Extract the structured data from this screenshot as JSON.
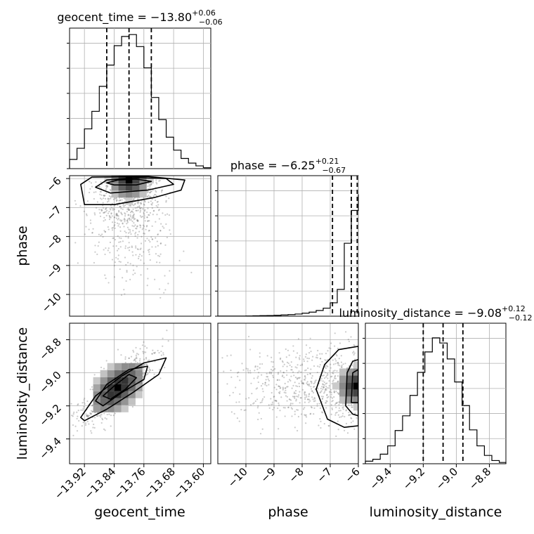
{
  "figure": {
    "type": "corner",
    "parameters": [
      "geocent_time",
      "phase",
      "luminosity_distance"
    ]
  },
  "colors": {
    "line": "#000000",
    "grid": "#b0b0b0",
    "density_dark": "#000000",
    "density_light": "#d9d9d9",
    "scatter": "#6b6b6b",
    "background": "#ffffff"
  },
  "chart_data": [
    {
      "type": "histogram",
      "panel": "diag-geocent_time",
      "title_param": "geocent_time",
      "title_median": "−13.80",
      "title_plus": "+0.06",
      "title_minus": "−0.06",
      "median": -13.8,
      "quantiles": [
        -13.86,
        -13.8,
        -13.74
      ],
      "xlim": [
        -13.96,
        -13.58
      ],
      "xticks": [
        -13.92,
        -13.84,
        -13.76,
        -13.68,
        -13.6
      ],
      "xtick_labels": [
        "−13.92",
        "−13.84",
        "−13.76",
        "−13.68",
        "−13.60"
      ],
      "xlabel": "geocent_time",
      "bin_edges": [
        -13.96,
        -13.94,
        -13.92,
        -13.9,
        -13.88,
        -13.86,
        -13.84,
        -13.82,
        -13.8,
        -13.78,
        -13.76,
        -13.74,
        -13.72,
        -13.7,
        -13.68,
        -13.66,
        -13.64,
        -13.62,
        -13.6,
        -13.58
      ],
      "counts": [
        0.1,
        0.22,
        0.43,
        0.62,
        0.89,
        1.12,
        1.33,
        1.43,
        1.45,
        1.32,
        1.09,
        0.77,
        0.53,
        0.34,
        0.2,
        0.11,
        0.06,
        0.03,
        0.01
      ],
      "ylim": [
        0,
        1.52
      ],
      "grid": true
    },
    {
      "type": "histogram",
      "panel": "diag-phase",
      "title_param": "phase",
      "title_median": "−6.25",
      "title_plus": "+0.21",
      "title_minus": "−0.67",
      "median": -6.25,
      "quantiles": [
        -6.92,
        -6.25,
        -6.04
      ],
      "xlim": [
        -11.0,
        -6.0
      ],
      "xticks": [
        -10,
        -9,
        -8,
        -7,
        -6
      ],
      "xtick_labels": [
        "−10",
        "−9",
        "−8",
        "−7",
        "−6"
      ],
      "xlabel": "phase",
      "bin_edges": [
        -11.0,
        -10.75,
        -10.5,
        -10.25,
        -10.0,
        -9.75,
        -9.5,
        -9.25,
        -9.0,
        -8.75,
        -8.5,
        -8.25,
        -8.0,
        -7.75,
        -7.5,
        -7.25,
        -7.0,
        -6.75,
        -6.5,
        -6.25,
        -6.0
      ],
      "counts": [
        0.001,
        0.001,
        0.001,
        0.002,
        0.003,
        0.005,
        0.008,
        0.01,
        0.013,
        0.018,
        0.024,
        0.032,
        0.045,
        0.06,
        0.085,
        0.12,
        0.2,
        0.4,
        1.09,
        1.58,
        1.82
      ],
      "ylim": [
        0,
        2.1
      ],
      "grid": true
    },
    {
      "type": "histogram",
      "panel": "diag-luminosity_distance",
      "title_param": "luminosity_distance",
      "title_median": "−9.08",
      "title_plus": "+0.12",
      "title_minus": "−0.12",
      "median": -9.08,
      "quantiles": [
        -9.2,
        -9.08,
        -8.96
      ],
      "xlim": [
        -9.55,
        -8.7
      ],
      "xticks": [
        -9.4,
        -9.2,
        -9.0,
        -8.8
      ],
      "xtick_labels": [
        "−9.4",
        "−9.2",
        "−9.0",
        "−8.8"
      ],
      "xlabel": "luminosity_distance",
      "bin_edges": [
        -9.55,
        -9.505,
        -9.46,
        -9.415,
        -9.37,
        -9.325,
        -9.28,
        -9.235,
        -9.19,
        -9.145,
        -9.1,
        -9.055,
        -9.01,
        -8.965,
        -8.92,
        -8.875,
        -8.83,
        -8.785,
        -8.74,
        -8.7
      ],
      "counts": [
        0.04,
        0.07,
        0.15,
        0.28,
        0.52,
        0.75,
        1.07,
        1.43,
        1.75,
        1.97,
        1.89,
        1.64,
        1.28,
        0.91,
        0.53,
        0.28,
        0.13,
        0.05,
        0.02
      ],
      "ylim": [
        0,
        2.2
      ],
      "grid": true
    },
    {
      "type": "density2d",
      "panel": "phase-vs-geocent_time",
      "x_param": "geocent_time",
      "y_param": "phase",
      "xlim": [
        -13.96,
        -13.58
      ],
      "ylim": [
        -10.75,
        -5.9
      ],
      "yticks": [
        -10,
        -9,
        -8,
        -7,
        -6
      ],
      "ytick_labels": [
        "−10",
        "−9",
        "−8",
        "−7",
        "−6"
      ],
      "ylabel": "phase",
      "mode": {
        "x": -13.8,
        "y": -6.05
      },
      "contours": [
        [
          [
            -13.86,
            -6.15
          ],
          [
            -13.83,
            -6.05
          ],
          [
            -13.78,
            -6.02
          ],
          [
            -13.74,
            -6.1
          ],
          [
            -13.78,
            -6.22
          ],
          [
            -13.84,
            -6.22
          ]
        ],
        [
          [
            -13.89,
            -6.3
          ],
          [
            -13.86,
            -6.05
          ],
          [
            -13.78,
            -5.97
          ],
          [
            -13.7,
            -6.0
          ],
          [
            -13.68,
            -6.2
          ],
          [
            -13.75,
            -6.4
          ],
          [
            -13.85,
            -6.5
          ]
        ],
        [
          [
            -13.93,
            -6.2
          ],
          [
            -13.9,
            -5.95
          ],
          [
            -13.75,
            -5.93
          ],
          [
            -13.65,
            -6.05
          ],
          [
            -13.66,
            -6.4
          ],
          [
            -13.73,
            -6.65
          ],
          [
            -13.84,
            -6.9
          ],
          [
            -13.92,
            -6.9
          ]
        ]
      ],
      "grid": true
    },
    {
      "type": "density2d",
      "panel": "luminosity_distance-vs-geocent_time",
      "x_param": "geocent_time",
      "y_param": "luminosity_distance",
      "xlim": [
        -13.96,
        -13.58
      ],
      "ylim": [
        -9.55,
        -8.7
      ],
      "yticks": [
        -9.4,
        -9.2,
        -9.0,
        -8.8
      ],
      "ytick_labels": [
        "−9.4",
        "−9.2",
        "−9.0",
        "−8.8"
      ],
      "ylabel": "luminosity_distance",
      "mode": {
        "x": -13.83,
        "y": -9.09
      },
      "contours": [
        [
          [
            -13.87,
            -9.14
          ],
          [
            -13.84,
            -9.08
          ],
          [
            -13.8,
            -9.01
          ],
          [
            -13.78,
            -9.03
          ],
          [
            -13.81,
            -9.1
          ],
          [
            -13.85,
            -9.16
          ]
        ],
        [
          [
            -13.89,
            -9.17
          ],
          [
            -13.86,
            -9.07
          ],
          [
            -13.8,
            -8.98
          ],
          [
            -13.75,
            -8.96
          ],
          [
            -13.76,
            -9.04
          ],
          [
            -13.82,
            -9.12
          ],
          [
            -13.87,
            -9.2
          ]
        ],
        [
          [
            -13.93,
            -9.27
          ],
          [
            -13.89,
            -9.14
          ],
          [
            -13.82,
            -9.02
          ],
          [
            -13.76,
            -8.94
          ],
          [
            -13.7,
            -8.91
          ],
          [
            -13.72,
            -9.01
          ],
          [
            -13.79,
            -9.12
          ],
          [
            -13.86,
            -9.22
          ],
          [
            -13.92,
            -9.29
          ]
        ]
      ],
      "grid": true
    },
    {
      "type": "density2d",
      "panel": "luminosity_distance-vs-phase",
      "x_param": "phase",
      "y_param": "luminosity_distance",
      "xlim": [
        -11.0,
        -6.0
      ],
      "ylim": [
        -9.55,
        -8.7
      ],
      "mode": {
        "x": -6.05,
        "y": -9.08
      },
      "contours": [
        [
          [
            -6.25,
            -9.18
          ],
          [
            -6.2,
            -9.0
          ],
          [
            -6.0,
            -8.98
          ],
          [
            -6.0,
            -9.18
          ]
        ],
        [
          [
            -6.45,
            -9.2
          ],
          [
            -6.4,
            -9.0
          ],
          [
            -6.2,
            -8.93
          ],
          [
            -6.0,
            -8.92
          ],
          [
            -6.0,
            -9.26
          ],
          [
            -6.2,
            -9.25
          ]
        ],
        [
          [
            -7.5,
            -9.1
          ],
          [
            -7.2,
            -8.95
          ],
          [
            -6.7,
            -8.86
          ],
          [
            -6.0,
            -8.84
          ],
          [
            -6.0,
            -9.32
          ],
          [
            -6.5,
            -9.33
          ],
          [
            -7.1,
            -9.28
          ]
        ]
      ],
      "grid": true
    }
  ]
}
